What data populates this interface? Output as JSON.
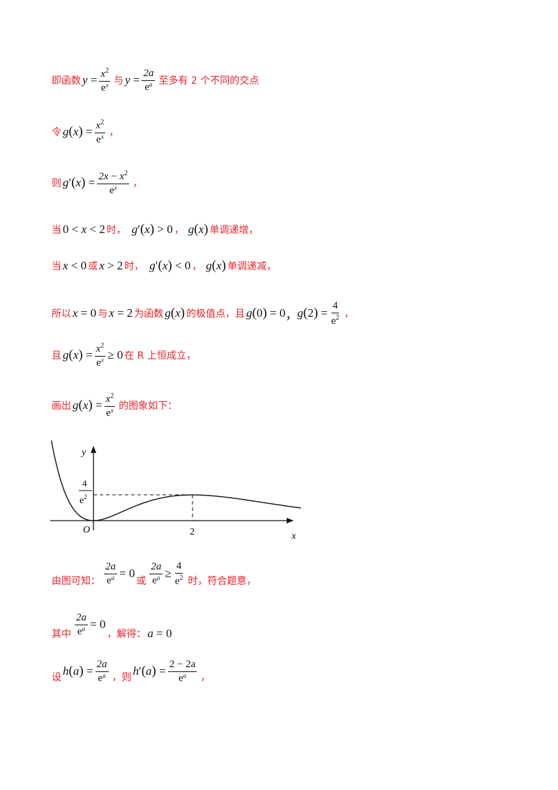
{
  "line1": {
    "t1": "即函数",
    "t2": "与",
    "t3": "至多有 2 个不同的交点"
  },
  "line2": {
    "t1": "令",
    "t2": "，"
  },
  "line3": {
    "t1": "则",
    "t2": "，"
  },
  "line4": {
    "t1": "当",
    "t2": "时，",
    "t3": "，",
    "t4": "单调递增，"
  },
  "line5": {
    "t1": "当",
    "t2": "或",
    "t3": "时，",
    "t4": "，",
    "t5": "单调递减，"
  },
  "line6": {
    "t1": "所以",
    "t2": "与",
    "t3": "为函数",
    "t4": "的极值点，且",
    "t5": "，"
  },
  "line7": {
    "t1": "且",
    "t2": "在 R 上恒成立，"
  },
  "line8": {
    "t1": "画出",
    "t2": "的图象如下："
  },
  "graph": {
    "y_label": "y",
    "x_label": "x",
    "origin_label": "O",
    "x_tick": "2",
    "y_tick_num": "4",
    "y_tick_den": "e",
    "y_tick_exp": "2"
  },
  "line9": {
    "t1": "由图可知：",
    "t2": "或",
    "t3": "时，符合题意，"
  },
  "line10": {
    "t1": "其中",
    "t2": "，解得："
  },
  "line11": {
    "t1": "设",
    "t2": "，则",
    "t3": "，"
  },
  "math": {
    "y": "y",
    "x": "x",
    "a": "a",
    "e": "e",
    "g": "g",
    "h": "h",
    "two": "2",
    "zero": "0",
    "four": "4",
    "eq": "=",
    "lt": "<",
    "gt": ">",
    "ge": "≥",
    "minus": "−",
    "lp": "(",
    "rp": ")",
    "prime": "′",
    "comma": "，",
    "two_x": "2x",
    "two_a": "2a",
    "two_minus_2a": "2 − 2a"
  }
}
